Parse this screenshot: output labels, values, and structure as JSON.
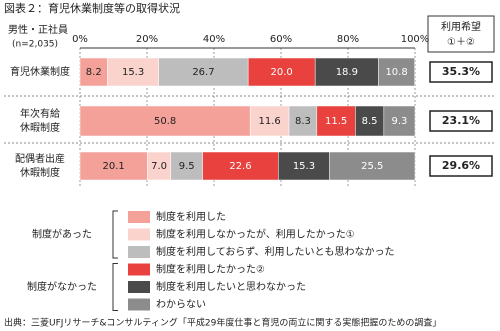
{
  "chart_data": {
    "type": "stacked_bar_horizontal",
    "title": "図表２：育児休業制度等の取得状況",
    "subtitle": [
      "男性・正社員",
      "(n=2,035)"
    ],
    "categories": [
      [
        "育児休業制度"
      ],
      [
        "年次有給",
        "休暇制度"
      ],
      [
        "配偶者出産",
        "休暇制度"
      ]
    ],
    "xlim": [
      0,
      100
    ],
    "xticks": [
      {
        "value": 0,
        "label": "0%"
      },
      {
        "value": 20,
        "label": "20%"
      },
      {
        "value": 40,
        "label": "40%"
      },
      {
        "value": 60,
        "label": "60%"
      },
      {
        "value": 80,
        "label": "80%"
      },
      {
        "value": 100,
        "label": "100%"
      }
    ],
    "grid": true,
    "series": [
      {
        "name": "制度を利用した",
        "color": "#f4a19a",
        "values": [
          8.2,
          50.8,
          20.1
        ]
      },
      {
        "name": "制度を利用しなかったが、利用したかった①",
        "color": "#fbd3cd",
        "values": [
          15.3,
          11.6,
          7
        ],
        "value_labels": [
          "15.3",
          "11.6",
          "7.0"
        ]
      },
      {
        "name": "制度を利用しておらず、利用したいとも思わなかった",
        "color": "#bdbdbd",
        "values": [
          26.7,
          8.3,
          9.5
        ]
      },
      {
        "name": "制度を利用したかった②",
        "color": "#e8413e",
        "values": [
          20,
          11.5,
          22.6
        ],
        "value_labels": [
          "20.0",
          "11.5",
          "22.6"
        ]
      },
      {
        "name": "制度を利用したいと思わなかった",
        "color": "#4a4a4a",
        "values": [
          18.9,
          8.5,
          15.3
        ]
      },
      {
        "name": "わからない",
        "color": "#8c8c8c",
        "values": [
          10.8,
          9.3,
          25.5
        ]
      }
    ],
    "totals": {
      "title": [
        "利用希望",
        "①＋②"
      ],
      "values": [
        35.3,
        23.1,
        29.6
      ],
      "value_labels": [
        "35.3%",
        "23.1%",
        "29.6%"
      ]
    },
    "legend_groups": [
      "制度があった",
      "制度がなかった"
    ],
    "source": "出典：三菱UFJリサーチ&コンサルティング「平成29年度仕事と育児の両立に関する実態把握のための調査」"
  }
}
